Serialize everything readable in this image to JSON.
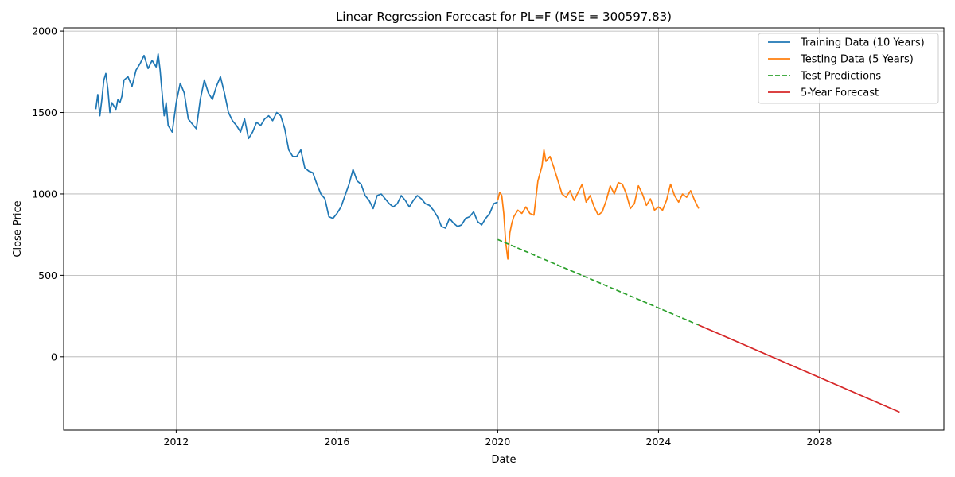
{
  "chart_data": {
    "type": "line",
    "title": "Linear Regression Forecast for PL=F (MSE = 300597.83)",
    "xlabel": "Date",
    "ylabel": "Close Price",
    "xlim": [
      2009.2,
      2031.1
    ],
    "ylim": [
      -450,
      2020
    ],
    "x_ticks": [
      2012,
      2016,
      2020,
      2024,
      2028
    ],
    "y_ticks": [
      0,
      500,
      1000,
      1500,
      2000
    ],
    "grid": true,
    "legend_position": "top-right",
    "series": [
      {
        "name": "Training Data (10 Years)",
        "color": "#1f77b4",
        "style": "solid",
        "x": [
          2010.0,
          2010.05,
          2010.1,
          2010.15,
          2010.2,
          2010.25,
          2010.3,
          2010.35,
          2010.4,
          2010.45,
          2010.5,
          2010.55,
          2010.6,
          2010.65,
          2010.7,
          2010.8,
          2010.9,
          2011.0,
          2011.1,
          2011.2,
          2011.3,
          2011.4,
          2011.5,
          2011.55,
          2011.6,
          2011.65,
          2011.7,
          2011.75,
          2011.8,
          2011.9,
          2012.0,
          2012.1,
          2012.2,
          2012.3,
          2012.4,
          2012.5,
          2012.6,
          2012.7,
          2012.8,
          2012.9,
          2013.0,
          2013.1,
          2013.2,
          2013.3,
          2013.4,
          2013.5,
          2013.6,
          2013.7,
          2013.8,
          2013.9,
          2014.0,
          2014.1,
          2014.2,
          2014.3,
          2014.4,
          2014.5,
          2014.6,
          2014.7,
          2014.8,
          2014.9,
          2015.0,
          2015.1,
          2015.2,
          2015.3,
          2015.4,
          2015.5,
          2015.6,
          2015.7,
          2015.8,
          2015.9,
          2016.0,
          2016.1,
          2016.2,
          2016.3,
          2016.4,
          2016.5,
          2016.6,
          2016.7,
          2016.8,
          2016.9,
          2017.0,
          2017.1,
          2017.2,
          2017.3,
          2017.4,
          2017.5,
          2017.6,
          2017.7,
          2017.8,
          2017.9,
          2018.0,
          2018.1,
          2018.2,
          2018.3,
          2018.4,
          2018.5,
          2018.6,
          2018.7,
          2018.8,
          2018.9,
          2019.0,
          2019.1,
          2019.2,
          2019.3,
          2019.4,
          2019.5,
          2019.6,
          2019.7,
          2019.8,
          2019.9,
          2020.0
        ],
        "y": [
          1520,
          1610,
          1480,
          1580,
          1700,
          1740,
          1640,
          1500,
          1560,
          1540,
          1520,
          1580,
          1560,
          1600,
          1700,
          1720,
          1660,
          1760,
          1800,
          1850,
          1770,
          1820,
          1780,
          1860,
          1760,
          1620,
          1480,
          1560,
          1420,
          1380,
          1560,
          1680,
          1620,
          1460,
          1430,
          1400,
          1580,
          1700,
          1620,
          1580,
          1660,
          1720,
          1620,
          1500,
          1450,
          1420,
          1380,
          1460,
          1340,
          1380,
          1440,
          1420,
          1460,
          1480,
          1450,
          1500,
          1480,
          1400,
          1270,
          1230,
          1230,
          1270,
          1160,
          1140,
          1130,
          1060,
          1000,
          970,
          860,
          850,
          880,
          920,
          990,
          1060,
          1150,
          1080,
          1060,
          990,
          960,
          910,
          990,
          1000,
          970,
          940,
          920,
          940,
          990,
          960,
          920,
          960,
          990,
          970,
          940,
          930,
          900,
          860,
          800,
          790,
          850,
          820,
          800,
          810,
          850,
          860,
          890,
          830,
          810,
          850,
          880,
          940,
          950
        ]
      },
      {
        "name": "Testing Data (5 Years)",
        "color": "#ff7f0e",
        "style": "solid",
        "x": [
          2020.0,
          2020.05,
          2020.1,
          2020.15,
          2020.2,
          2020.25,
          2020.3,
          2020.35,
          2020.4,
          2020.5,
          2020.6,
          2020.7,
          2020.8,
          2020.9,
          2021.0,
          2021.1,
          2021.15,
          2021.2,
          2021.3,
          2021.4,
          2021.5,
          2021.6,
          2021.7,
          2021.8,
          2021.9,
          2022.0,
          2022.1,
          2022.2,
          2022.3,
          2022.4,
          2022.5,
          2022.6,
          2022.7,
          2022.8,
          2022.9,
          2023.0,
          2023.1,
          2023.2,
          2023.3,
          2023.4,
          2023.5,
          2023.6,
          2023.7,
          2023.8,
          2023.9,
          2024.0,
          2024.1,
          2024.2,
          2024.3,
          2024.4,
          2024.5,
          2024.6,
          2024.7,
          2024.8,
          2024.9,
          2025.0
        ],
        "y": [
          960,
          1010,
          990,
          880,
          700,
          600,
          760,
          820,
          860,
          900,
          880,
          920,
          880,
          870,
          1080,
          1170,
          1270,
          1200,
          1230,
          1160,
          1080,
          1000,
          980,
          1020,
          960,
          1010,
          1060,
          950,
          990,
          920,
          870,
          890,
          960,
          1050,
          1000,
          1070,
          1060,
          1000,
          910,
          940,
          1050,
          1000,
          930,
          970,
          900,
          920,
          900,
          960,
          1060,
          990,
          950,
          1000,
          980,
          1020,
          960,
          910
        ]
      },
      {
        "name": "Test Predictions",
        "color": "#2ca02c",
        "style": "dashed",
        "x": [
          2020.0,
          2025.0
        ],
        "y": [
          720,
          195
        ]
      },
      {
        "name": "5-Year Forecast",
        "color": "#d62728",
        "style": "solid",
        "x": [
          2025.0,
          2030.0
        ],
        "y": [
          195,
          -340
        ]
      }
    ]
  }
}
